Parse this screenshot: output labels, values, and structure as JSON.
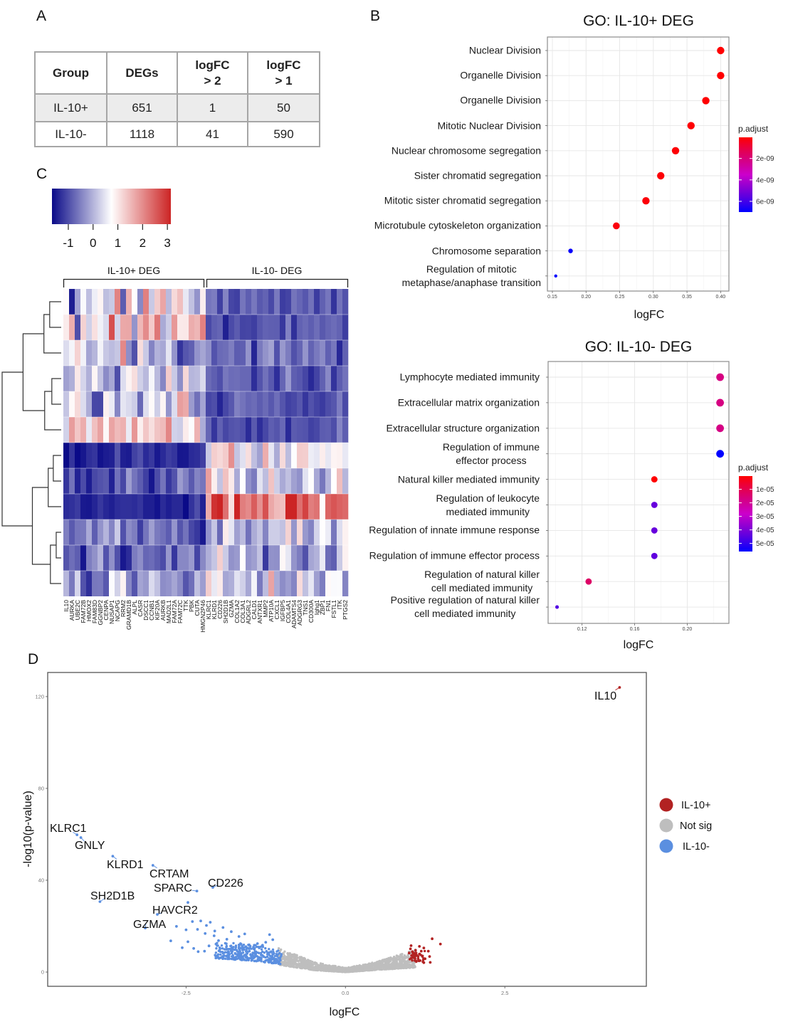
{
  "panel_labels": {
    "a": "A",
    "b": "B",
    "c": "C",
    "d": "D"
  },
  "panel_a": {
    "table": {
      "columns": [
        {
          "line1": "Group",
          "line2": ""
        },
        {
          "line1": "DEGs",
          "line2": ""
        },
        {
          "line1": "logFC",
          "line2": "> 2"
        },
        {
          "line1": "logFC",
          "line2": "> 1"
        }
      ],
      "rows": [
        {
          "group": "IL-10+",
          "degs": "651",
          "logfc_gt2": "1",
          "logfc_gt1": "50"
        },
        {
          "group": "IL-10-",
          "degs": "1118",
          "logfc_gt2": "41",
          "logfc_gt1": "590"
        }
      ],
      "highlight_row_color": "#ececec"
    }
  },
  "chart_data": [
    {
      "id": "go_il10_pos",
      "type": "scatter",
      "subtype": "dotplot",
      "title": "GO: IL-10+ DEG",
      "xlabel": "logFC",
      "ylabel": "",
      "xlim": [
        0.1426,
        0.4123
      ],
      "xticks": [
        0.15,
        0.2,
        0.25,
        0.3,
        0.35,
        0.4
      ],
      "xtick_labels": [
        "0.15",
        "0.20",
        "0.25",
        "0.30",
        "0.35",
        "0.40"
      ],
      "grid": true,
      "terms": [
        {
          "label_lines": [
            "Nuclear Division"
          ],
          "logFC": 0.4,
          "p_adjust": 4e-11,
          "dot_size_rel": 1.0
        },
        {
          "label_lines": [
            "Organelle Division"
          ],
          "logFC": 0.4,
          "p_adjust": 4e-11,
          "dot_size_rel": 1.0
        },
        {
          "label_lines": [
            "Organelle Division"
          ],
          "logFC": 0.378,
          "p_adjust": 6e-11,
          "dot_size_rel": 1.0
        },
        {
          "label_lines": [
            "Mitotic Nuclear Division"
          ],
          "logFC": 0.356,
          "p_adjust": 8e-11,
          "dot_size_rel": 1.0
        },
        {
          "label_lines": [
            "Nuclear chromosome segregation"
          ],
          "logFC": 0.333,
          "p_adjust": 1e-10,
          "dot_size_rel": 1.0
        },
        {
          "label_lines": [
            "Sister chromatid segregation"
          ],
          "logFC": 0.311,
          "p_adjust": 1.2e-10,
          "dot_size_rel": 1.0
        },
        {
          "label_lines": [
            "Mitotic sister chromatid segregation"
          ],
          "logFC": 0.289,
          "p_adjust": 1.5e-10,
          "dot_size_rel": 1.0
        },
        {
          "label_lines": [
            "Microtubule cytoskeleton organization"
          ],
          "logFC": 0.245,
          "p_adjust": 2e-10,
          "dot_size_rel": 0.93
        },
        {
          "label_lines": [
            "Chromosome separation"
          ],
          "logFC": 0.177,
          "p_adjust": 6.9e-09,
          "dot_size_rel": 0.62
        },
        {
          "label_lines": [
            "Regulation of mitotic",
            "metaphase/anaphase transition"
          ],
          "logFC": 0.155,
          "p_adjust": 7e-09,
          "dot_size_rel": 0.42
        }
      ],
      "color_legend": {
        "title": "p.adjust",
        "min": 3e-11,
        "max": 7e-09,
        "low_color": "#ff0000",
        "high_color": "#0000ff",
        "ticks": [
          2e-09,
          4e-09,
          6e-09
        ],
        "tick_labels": [
          "2e-09",
          "4e-09",
          "6e-09"
        ],
        "placement": "right"
      }
    },
    {
      "id": "go_il10_neg",
      "type": "scatter",
      "subtype": "dotplot",
      "title": "GO: IL-10- DEG",
      "xlabel": "logFC",
      "ylabel": "",
      "xlim": [
        0.0942,
        0.2317
      ],
      "xticks": [
        0.12,
        0.16,
        0.2
      ],
      "xtick_labels": [
        "0.12",
        "0.16",
        "0.20"
      ],
      "grid": true,
      "terms": [
        {
          "label_lines": [
            "Lymphocyte mediated immunity"
          ],
          "logFC": 0.225,
          "p_adjust": 1.7e-05,
          "dot_size_rel": 1.0
        },
        {
          "label_lines": [
            "Extracellular matrix organization"
          ],
          "logFC": 0.225,
          "p_adjust": 1.7e-05,
          "dot_size_rel": 1.0
        },
        {
          "label_lines": [
            "Extracellular structure organization"
          ],
          "logFC": 0.225,
          "p_adjust": 1.75e-05,
          "dot_size_rel": 1.0
        },
        {
          "label_lines": [
            "Regulation of immune",
            "effector process"
          ],
          "logFC": 0.225,
          "p_adjust": 5.6e-05,
          "dot_size_rel": 1.0
        },
        {
          "label_lines": [
            "Natural killer mediated immunity"
          ],
          "logFC": 0.175,
          "p_adjust": 2e-07,
          "dot_size_rel": 0.82
        },
        {
          "label_lines": [
            "Regulation of leukocyte",
            "mediated immunity"
          ],
          "logFC": 0.175,
          "p_adjust": 4.3e-05,
          "dot_size_rel": 0.82
        },
        {
          "label_lines": [
            "Regulation of innate immune response"
          ],
          "logFC": 0.175,
          "p_adjust": 4.3e-05,
          "dot_size_rel": 0.82
        },
        {
          "label_lines": [
            "Regulation of immune effector process"
          ],
          "logFC": 0.175,
          "p_adjust": 4.4e-05,
          "dot_size_rel": 0.82
        },
        {
          "label_lines": [
            "Regulation of natural killer",
            "cell mediated immunity"
          ],
          "logFC": 0.125,
          "p_adjust": 1.3e-05,
          "dot_size_rel": 0.82
        },
        {
          "label_lines": [
            "Positive regulation of natural killer",
            "cell mediated immunity"
          ],
          "logFC": 0.101,
          "p_adjust": 4.6e-05,
          "dot_size_rel": 0.47
        }
      ],
      "color_legend": {
        "title": "p.adjust",
        "min": 2e-07,
        "max": 5.6e-05,
        "low_color": "#ff0000",
        "high_color": "#0000ff",
        "ticks": [
          1e-05,
          2e-05,
          3e-05,
          4e-05,
          5e-05
        ],
        "tick_labels": [
          "1e-05",
          "2e-05",
          "3e-05",
          "4e-05",
          "5e-05"
        ],
        "placement": "right"
      }
    },
    {
      "id": "deg_heatmap",
      "type": "heatmap",
      "title": "",
      "colorbar": {
        "min": -1.66,
        "max": 3.14,
        "mid_value": 0.74,
        "low_color": "#0a0a88",
        "mid_color": "#ffffff",
        "high_color": "#cc2424",
        "ticks": [
          -1,
          0,
          1,
          2,
          3
        ],
        "tick_labels": [
          "-1",
          "0",
          "1",
          "2",
          "3"
        ],
        "placement": "top-left"
      },
      "column_groups": [
        {
          "label": "IL-10+ DEG",
          "genes": [
            "IL10",
            "AURKA",
            "UBE2C",
            "FAM72B",
            "HMOX2",
            "FAM83D",
            "GGNBP2",
            "CENPA",
            "NUSAP1",
            "NCAPG",
            "RRM2",
            "GRAMD1B",
            "ALPL",
            "CASR",
            "DSCC1",
            "CCNB1",
            "KIF20A",
            "AURKB",
            "MAD2L1",
            "FAM72A",
            "FAM72C",
            "TTK",
            "PBK",
            "CUTA",
            "HMGN2P46"
          ]
        },
        {
          "label": "IL-10- DEG",
          "genes": [
            "KLRC1",
            "KLRD1",
            "CD226",
            "SH2D1B",
            "GZMA",
            "COL1A2",
            "COL3A1",
            "ADGRL2",
            "CALD1",
            "ANTXR1",
            "MMP2",
            "ATP10A",
            "CXCL1",
            "IGFBP5",
            "COL4A1",
            "ADAMTS4",
            "ADGRG3",
            "TNS1",
            "CD300A",
            "Ighg1",
            "ZBP1",
            "FN1",
            "FSTL1",
            "ITK",
            "PTGS2"
          ]
        }
      ],
      "rows": [
        {
          "il10_pos_mean": 0.45,
          "il10_pos_sd": 0.85,
          "il10_neg_mean": -0.85,
          "il10_neg_sd": 0.22
        },
        {
          "il10_pos_mean": 0.95,
          "il10_pos_sd": 0.75,
          "il10_neg_mean": -0.95,
          "il10_neg_sd": 0.25
        },
        {
          "il10_pos_mean": 0.0,
          "il10_pos_sd": 0.7,
          "il10_neg_mean": -0.6,
          "il10_neg_sd": 0.3
        },
        {
          "il10_pos_mean": 0.4,
          "il10_pos_sd": 0.65,
          "il10_neg_mean": -0.85,
          "il10_neg_sd": 0.2
        },
        {
          "il10_pos_mean": 0.25,
          "il10_pos_sd": 0.7,
          "il10_neg_mean": -0.95,
          "il10_neg_sd": 0.2
        },
        {
          "il10_pos_mean": 1.05,
          "il10_pos_sd": 0.6,
          "il10_neg_mean": -0.95,
          "il10_neg_sd": 0.2
        },
        {
          "il10_pos_mean": -1.35,
          "il10_pos_sd": 0.2,
          "il10_neg_mean": 0.85,
          "il10_neg_sd": 0.6
        },
        {
          "il10_pos_mean": -0.95,
          "il10_pos_sd": 0.3,
          "il10_neg_mean": 0.3,
          "il10_neg_sd": 0.6
        },
        {
          "il10_pos_mean": -1.45,
          "il10_pos_sd": 0.15,
          "il10_neg_mean": 2.3,
          "il10_neg_sd": 0.55
        },
        {
          "il10_pos_mean": -0.7,
          "il10_pos_sd": 0.4,
          "il10_neg_mean": 0.15,
          "il10_neg_sd": 0.6
        },
        {
          "il10_pos_mean": -0.75,
          "il10_pos_sd": 0.35,
          "il10_neg_mean": 0.1,
          "il10_neg_sd": 0.6
        },
        {
          "il10_pos_mean": -0.4,
          "il10_pos_sd": 0.5,
          "il10_neg_mean": 0.25,
          "il10_neg_sd": 0.7
        }
      ],
      "row_dendrogram": {
        "merge": [
          [
            -1,
            -2
          ],
          [
            1,
            -3
          ],
          [
            -4,
            -5
          ],
          [
            3,
            -6
          ],
          [
            2,
            4
          ],
          [
            -7,
            -8
          ],
          [
            6,
            -9
          ],
          [
            -10,
            -11
          ],
          [
            8,
            -12
          ],
          [
            7,
            9
          ],
          [
            5,
            10
          ]
        ],
        "height": [
          0.195,
          0.293,
          0.159,
          0.28,
          0.646,
          0.134,
          0.22,
          0.085,
          0.183,
          0.488,
          1.0
        ]
      }
    },
    {
      "id": "volcano",
      "type": "scatter",
      "subtype": "volcano",
      "title": "",
      "xlabel": "logFC",
      "ylabel": "-log10(p-value)",
      "xlim": [
        -4.67,
        4.72
      ],
      "ylim": [
        -6.2,
        130.5
      ],
      "xticks": [
        -2.5,
        0,
        2.5
      ],
      "xtick_labels": [
        "-2.5",
        "0.0",
        "2.5"
      ],
      "yticks": [
        0,
        40,
        80,
        120
      ],
      "ytick_labels": [
        "0",
        "40",
        "80",
        "120"
      ],
      "grid": false,
      "legend": {
        "placement": "right",
        "entries": [
          {
            "label": "IL-10+",
            "color": "#b22222"
          },
          {
            "label": "Not sig",
            "color": "#bebebe"
          },
          {
            "label": "IL-10-",
            "color": "#5b8fe0"
          }
        ]
      },
      "labeled_points": [
        {
          "gene": "IL10",
          "logFC": 4.3,
          "neglog10p": 124.0,
          "group": "IL-10+"
        },
        {
          "gene": "KLRC1",
          "logFC": -4.21,
          "neglog10p": 59.8,
          "group": "IL-10-"
        },
        {
          "gene": "GNLY",
          "logFC": -4.15,
          "neglog10p": 58.6,
          "group": "IL-10-"
        },
        {
          "gene": "KLRD1",
          "logFC": -3.65,
          "neglog10p": 50.5,
          "group": "IL-10-"
        },
        {
          "gene": "CRTAM",
          "logFC": -3.02,
          "neglog10p": 46.5,
          "group": "IL-10-"
        },
        {
          "gene": "SPARC",
          "logFC": -2.33,
          "neglog10p": 35.3,
          "group": "IL-10-"
        },
        {
          "gene": "CD226",
          "logFC": -2.08,
          "neglog10p": 36.9,
          "group": "IL-10-"
        },
        {
          "gene": "SH2D1B",
          "logFC": -3.85,
          "neglog10p": 30.7,
          "group": "IL-10-"
        },
        {
          "gene": "HAVCR2",
          "logFC": -2.95,
          "neglog10p": 25.1,
          "group": "IL-10-"
        },
        {
          "gene": "GZMA",
          "logFC": -3.14,
          "neglog10p": 19.2,
          "group": "IL-10-"
        }
      ],
      "points": {
        "IL-10-": [
          [
            -2.47,
            30.3
          ],
          [
            -2.4,
            22.0
          ],
          [
            -2.27,
            22.3
          ],
          [
            -2.12,
            21.7
          ],
          [
            -2.18,
            20.3
          ],
          [
            -2.65,
            19.9
          ],
          [
            -2.5,
            18.4
          ],
          [
            -2.32,
            18.6
          ],
          [
            -2.2,
            16.8
          ],
          [
            -2.05,
            17.9
          ],
          [
            -1.92,
            19.4
          ],
          [
            -1.79,
            17.6
          ],
          [
            -1.58,
            16.6
          ],
          [
            -1.67,
            15.5
          ],
          [
            -1.19,
            16.3
          ],
          [
            -1.14,
            14.1
          ],
          [
            -2.74,
            13.6
          ],
          [
            -2.47,
            13.2
          ],
          [
            -2.56,
            10.6
          ],
          [
            -2.38,
            10.3
          ],
          [
            -2.31,
            8.9
          ],
          [
            -2.21,
            9.1
          ],
          [
            -2.14,
            11.4
          ],
          [
            -2.03,
            12.2
          ],
          [
            -1.38,
            12.4
          ],
          [
            -1.3,
            11.7
          ],
          [
            -1.25,
            13.0
          ],
          [
            -1.43,
            11.7
          ],
          [
            -2.06,
            15.8
          ],
          [
            -1.99,
            13.7
          ],
          [
            -1.86,
            14.3
          ]
        ],
        "IL-10+": [
          [
            1.36,
            14.5
          ],
          [
            1.49,
            12.2
          ],
          [
            1.03,
            11.5
          ],
          [
            1.16,
            11.2
          ],
          [
            1.23,
            10.5
          ],
          [
            1.02,
            10.1
          ],
          [
            1.1,
            9.5
          ],
          [
            1.19,
            9.1
          ],
          [
            1.3,
            9.1
          ],
          [
            1.0,
            8.3
          ],
          [
            1.06,
            7.5
          ],
          [
            1.12,
            7.2
          ],
          [
            1.16,
            7.8
          ],
          [
            1.21,
            7.0
          ],
          [
            1.08,
            6.2
          ],
          [
            1.14,
            5.8
          ],
          [
            1.25,
            5.8
          ],
          [
            1.32,
            6.8
          ],
          [
            1.17,
            5.0
          ],
          [
            1.23,
            4.1
          ],
          [
            1.33,
            4.2
          ],
          [
            1.05,
            8.9
          ],
          [
            1.1,
            8.3
          ],
          [
            1.14,
            6.8
          ],
          [
            1.09,
            5.0
          ],
          [
            1.03,
            6.0
          ]
        ]
      },
      "dense_regions": [
        {
          "group": "Not sig",
          "count": 1400,
          "envelope": [
            {
              "logFC": -1.05,
              "y_min": 3.2,
              "y_max": 10.5
            },
            {
              "logFC": -0.5,
              "y_min": 0.9,
              "y_max": 4.4
            },
            {
              "logFC": 0.0,
              "y_min": 0.0,
              "y_max": 1.8
            },
            {
              "logFC": 0.5,
              "y_min": 1.0,
              "y_max": 4.5
            },
            {
              "logFC": 1.1,
              "y_min": 2.0,
              "y_max": 9.8
            }
          ]
        },
        {
          "group": "IL-10-",
          "count": 350,
          "envelope": [
            {
              "logFC": -2.05,
              "y_min": 6.0,
              "y_max": 13.0
            },
            {
              "logFC": -1.5,
              "y_min": 5.0,
              "y_max": 12.5
            },
            {
              "logFC": -1.0,
              "y_min": 3.4,
              "y_max": 9.0
            }
          ]
        },
        {
          "group": "IL-10+",
          "count": 25,
          "envelope": [
            {
              "logFC": 1.0,
              "y_min": 4.5,
              "y_max": 9.5
            },
            {
              "logFC": 1.25,
              "y_min": 4.5,
              "y_max": 9.5
            }
          ]
        }
      ]
    }
  ]
}
